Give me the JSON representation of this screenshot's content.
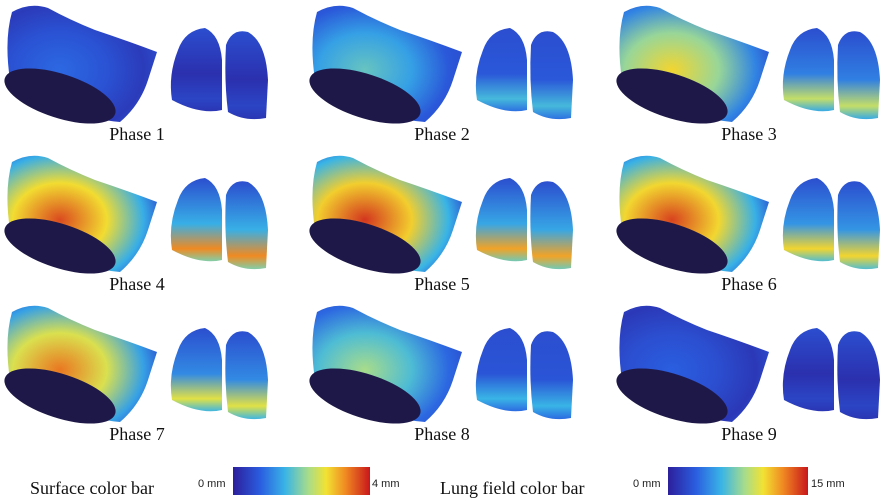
{
  "panels": [
    {
      "label": "Phase 1"
    },
    {
      "label": "Phase 2"
    },
    {
      "label": "Phase 3"
    },
    {
      "label": "Phase 4"
    },
    {
      "label": "Phase 5"
    },
    {
      "label": "Phase 6"
    },
    {
      "label": "Phase 7"
    },
    {
      "label": "Phase 8"
    },
    {
      "label": "Phase 9"
    }
  ],
  "colorbars": [
    {
      "title": "Surface color bar",
      "min_label": "0 mm",
      "max_label": "4 mm"
    },
    {
      "title": "Lung field color bar",
      "min_label": "0 mm",
      "max_label": "15 mm"
    }
  ]
}
